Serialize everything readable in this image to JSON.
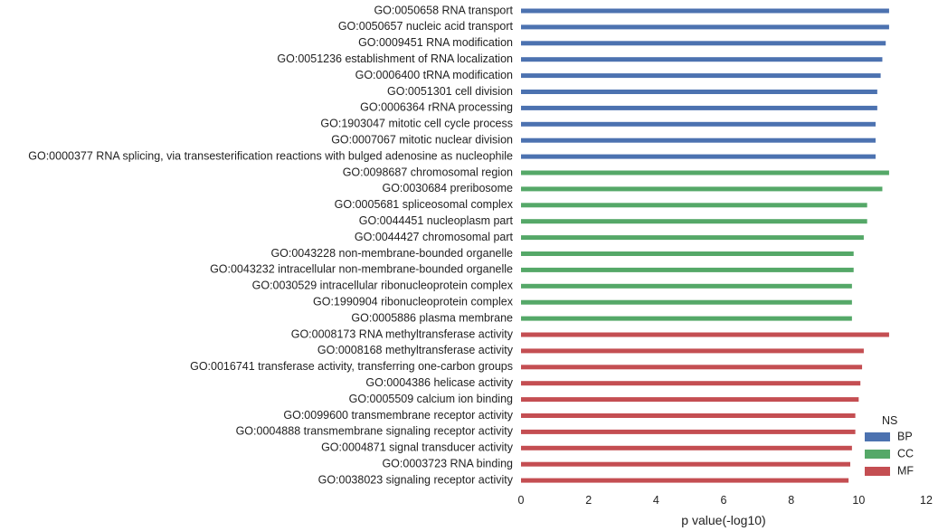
{
  "chart_data": {
    "type": "bar",
    "orientation": "horizontal",
    "xlabel": "p value(-log10)",
    "ylabel": "",
    "xlim": [
      0,
      12
    ],
    "xticks": [
      0,
      2,
      4,
      6,
      8,
      10,
      12
    ],
    "grid": false,
    "legend": {
      "title": "NS",
      "placement": "bottom-right",
      "entries": [
        {
          "name": "BP",
          "color": "#4c72b0"
        },
        {
          "name": "CC",
          "color": "#55a868"
        },
        {
          "name": "MF",
          "color": "#c44e52"
        }
      ]
    },
    "bars": [
      {
        "label": "GO:0050658 RNA transport",
        "value": 10.9,
        "ns": "BP"
      },
      {
        "label": "GO:0050657 nucleic acid transport",
        "value": 10.9,
        "ns": "BP"
      },
      {
        "label": "GO:0009451 RNA modification",
        "value": 10.8,
        "ns": "BP"
      },
      {
        "label": "GO:0051236 establishment of RNA localization",
        "value": 10.7,
        "ns": "BP"
      },
      {
        "label": "GO:0006400 tRNA modification",
        "value": 10.65,
        "ns": "BP"
      },
      {
        "label": "GO:0051301 cell division",
        "value": 10.55,
        "ns": "BP"
      },
      {
        "label": "GO:0006364 rRNA processing",
        "value": 10.55,
        "ns": "BP"
      },
      {
        "label": "GO:1903047 mitotic cell cycle process",
        "value": 10.5,
        "ns": "BP"
      },
      {
        "label": "GO:0007067 mitotic nuclear division",
        "value": 10.5,
        "ns": "BP"
      },
      {
        "label": "GO:0000377 RNA splicing, via transesterification reactions with bulged adenosine as nucleophile",
        "value": 10.5,
        "ns": "BP"
      },
      {
        "label": "GO:0098687 chromosomal region",
        "value": 10.9,
        "ns": "CC"
      },
      {
        "label": "GO:0030684 preribosome",
        "value": 10.7,
        "ns": "CC"
      },
      {
        "label": "GO:0005681 spliceosomal complex",
        "value": 10.25,
        "ns": "CC"
      },
      {
        "label": "GO:0044451 nucleoplasm part",
        "value": 10.25,
        "ns": "CC"
      },
      {
        "label": "GO:0044427 chromosomal part",
        "value": 10.15,
        "ns": "CC"
      },
      {
        "label": "GO:0043228 non-membrane-bounded organelle",
        "value": 9.85,
        "ns": "CC"
      },
      {
        "label": "GO:0043232 intracellular non-membrane-bounded organelle",
        "value": 9.85,
        "ns": "CC"
      },
      {
        "label": "GO:0030529 intracellular ribonucleoprotein complex",
        "value": 9.8,
        "ns": "CC"
      },
      {
        "label": "GO:1990904 ribonucleoprotein complex",
        "value": 9.8,
        "ns": "CC"
      },
      {
        "label": "GO:0005886 plasma membrane",
        "value": 9.8,
        "ns": "CC"
      },
      {
        "label": "GO:0008173 RNA methyltransferase activity",
        "value": 10.9,
        "ns": "MF"
      },
      {
        "label": "GO:0008168 methyltransferase activity",
        "value": 10.15,
        "ns": "MF"
      },
      {
        "label": "GO:0016741 transferase activity, transferring one-carbon groups",
        "value": 10.1,
        "ns": "MF"
      },
      {
        "label": "GO:0004386 helicase activity",
        "value": 10.05,
        "ns": "MF"
      },
      {
        "label": "GO:0005509 calcium ion binding",
        "value": 10.0,
        "ns": "MF"
      },
      {
        "label": "GO:0099600 transmembrane receptor activity",
        "value": 9.9,
        "ns": "MF"
      },
      {
        "label": "GO:0004888 transmembrane signaling receptor activity",
        "value": 9.9,
        "ns": "MF"
      },
      {
        "label": "GO:0004871 signal transducer activity",
        "value": 9.8,
        "ns": "MF"
      },
      {
        "label": "GO:0003723 RNA binding",
        "value": 9.75,
        "ns": "MF"
      },
      {
        "label": "GO:0038023 signaling receptor activity",
        "value": 9.7,
        "ns": "MF"
      }
    ]
  }
}
